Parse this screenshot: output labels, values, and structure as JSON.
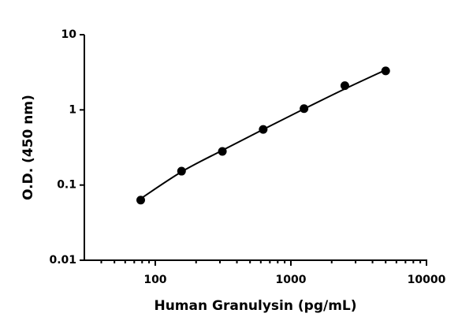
{
  "chart_data": {
    "type": "scatter",
    "xlabel": "Human Granulysin (pg/mL)",
    "ylabel": "O.D. (450 nm)",
    "x": [
      78.125,
      156.25,
      312.5,
      625,
      1250,
      2500,
      5000
    ],
    "values": [
      0.063,
      0.153,
      0.28,
      0.55,
      1.04,
      2.1,
      3.3
    ],
    "color": "#000000",
    "fit": {
      "x": [
        78.125,
        156.25,
        312.5,
        625,
        1250,
        2500,
        5000
      ],
      "values": [
        0.066,
        0.15,
        0.29,
        0.55,
        1.03,
        1.9,
        3.4
      ]
    },
    "xlog": true,
    "ylog": true,
    "xlim": [
      30,
      10000
    ],
    "ylim": [
      0.01,
      10
    ],
    "xticks": [
      100,
      1000,
      10000
    ],
    "xminorticks": [
      40,
      50,
      60,
      70,
      80,
      90,
      200,
      300,
      400,
      500,
      600,
      700,
      800,
      900,
      2000,
      3000,
      4000,
      5000,
      6000,
      7000,
      8000,
      9000
    ],
    "yticks": [
      0.01,
      0.1,
      1,
      10
    ]
  }
}
